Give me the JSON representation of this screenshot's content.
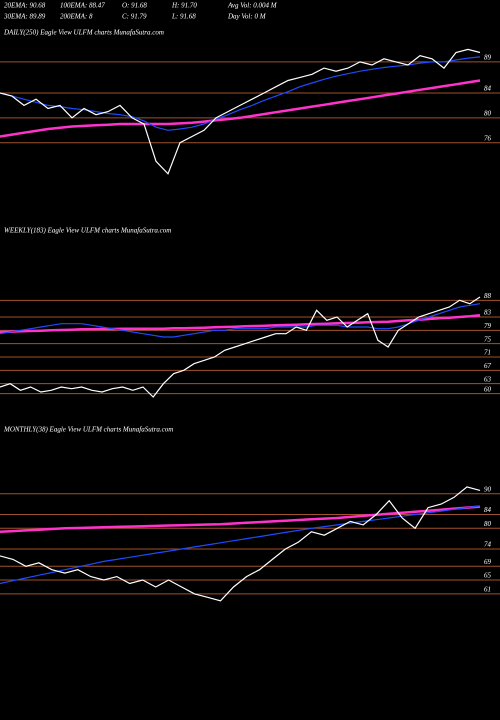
{
  "header": {
    "stats": [
      [
        "20EMA: 90.68",
        "100EMA: 88.47",
        "O: 91.68",
        "H: 91.70",
        "Avg Vol: 0.004  M"
      ],
      [
        "30EMA: 89.89",
        "200EMA: 8",
        "C: 91.79",
        "L: 91.68",
        "Day Vol: 0  M"
      ]
    ]
  },
  "chart_data": [
    {
      "type": "line",
      "title": "DAILY(250) Eagle  View  ULFM charts MunafaSutra.com",
      "ylim": [
        70,
        93
      ],
      "yticks": [
        89,
        84,
        80,
        76
      ],
      "series": [
        {
          "color": "#ff33cc",
          "values": [
            77,
            77.3,
            77.6,
            77.9,
            78.2,
            78.4,
            78.6,
            78.7,
            78.8,
            78.9,
            79,
            79,
            79,
            79,
            79,
            79.1,
            79.2,
            79.4,
            79.6,
            79.8,
            80,
            80.3,
            80.6,
            80.9,
            81.2,
            81.5,
            81.8,
            82.1,
            82.4,
            82.7,
            83,
            83.3,
            83.6,
            83.9,
            84.2,
            84.5,
            84.8,
            85.1,
            85.4,
            85.7,
            86
          ]
        },
        {
          "color": "#1e4bff",
          "values": [
            84,
            83.5,
            83,
            82.5,
            82,
            81.8,
            81.5,
            81.3,
            81,
            80.7,
            80.5,
            80.2,
            79.5,
            78.5,
            78,
            78.2,
            78.5,
            79,
            79.8,
            80.5,
            81.3,
            82,
            82.8,
            83.5,
            84.2,
            85,
            85.6,
            86.2,
            86.7,
            87.1,
            87.5,
            87.8,
            88.1,
            88.3,
            88.5,
            88.8,
            89,
            89,
            89.3,
            89.6,
            89.8
          ]
        },
        {
          "color": "#ffffff",
          "values": [
            84,
            83.5,
            82,
            83,
            81.5,
            82,
            80,
            81.5,
            80.5,
            81,
            82,
            80,
            79,
            73,
            71,
            76,
            77,
            78,
            80,
            81,
            82,
            83,
            84,
            85,
            86,
            86.5,
            87,
            88,
            87.5,
            88,
            89,
            88.5,
            89.5,
            89,
            88.5,
            90,
            89.5,
            88,
            90.5,
            91,
            90.5
          ]
        }
      ]
    },
    {
      "type": "line",
      "title": "WEEKLY(183) Eagle  View  ULFM charts MunafaSutra.com",
      "ylim": [
        56,
        92
      ],
      "yticks": [
        88,
        83,
        79,
        75,
        71,
        67,
        63,
        60
      ],
      "series": [
        {
          "color": "#ff33cc",
          "values": [
            78.5,
            78.6,
            78.7,
            78.8,
            78.9,
            79,
            79.1,
            79.2,
            79.3,
            79.3,
            79.4,
            79.4,
            79.5,
            79.5,
            79.5,
            79.5,
            79.5,
            79.6,
            79.6,
            79.7,
            79.8,
            79.9,
            80,
            80.1,
            80.2,
            80.3,
            80.4,
            80.5,
            80.6,
            80.7,
            80.8,
            80.9,
            81,
            81.1,
            81.2,
            81.3,
            81.4,
            81.5,
            81.6,
            81.8,
            82,
            82.2,
            82.4,
            82.6,
            82.8,
            83,
            83.2,
            83.5
          ]
        },
        {
          "color": "#1e4bff",
          "values": [
            78,
            78.5,
            79,
            79.5,
            80,
            80.5,
            81,
            81,
            81,
            80.5,
            80,
            79.5,
            79,
            78.5,
            78,
            77.5,
            77,
            77,
            77.5,
            78,
            78.5,
            79,
            79,
            79.5,
            79.5,
            79.5,
            79.5,
            80,
            80,
            80,
            80,
            80.5,
            80.5,
            80.5,
            80,
            80,
            80,
            79.5,
            79.5,
            80,
            81,
            82,
            83,
            84,
            85,
            86,
            86.5,
            87
          ]
        },
        {
          "color": "#ffffff",
          "values": [
            62,
            63,
            61,
            62,
            60.5,
            61,
            62,
            61.5,
            62,
            61,
            60.5,
            61.5,
            62,
            61,
            62,
            59,
            63,
            66,
            67,
            69,
            70,
            71,
            73,
            74,
            75,
            76,
            77,
            78,
            78,
            80,
            79,
            85,
            82,
            83,
            80,
            82,
            84,
            76,
            74,
            79,
            81,
            83,
            84,
            85,
            86,
            88,
            87,
            89
          ]
        }
      ]
    },
    {
      "type": "line",
      "title": "MONTHLY(38) Eagle  View  ULFM charts MunafaSutra.com",
      "ylim": [
        54,
        94
      ],
      "yticks": [
        90,
        84,
        80,
        74,
        69,
        65,
        61
      ],
      "series": [
        {
          "color": "#ff33cc",
          "values": [
            79,
            79.2,
            79.4,
            79.6,
            79.8,
            80,
            80.1,
            80.2,
            80.3,
            80.4,
            80.5,
            80.6,
            80.7,
            80.8,
            80.9,
            81,
            81.1,
            81.2,
            81.4,
            81.6,
            81.8,
            82,
            82.2,
            82.4,
            82.6,
            82.8,
            83,
            83.3,
            83.6,
            83.9,
            84.2,
            84.5,
            84.8,
            85.1,
            85.4,
            85.7,
            86,
            86.3
          ]
        },
        {
          "color": "#1e4bff",
          "values": [
            64,
            64.8,
            65.6,
            66.4,
            67.2,
            68,
            68.8,
            69.6,
            70.4,
            71,
            71.6,
            72.2,
            72.8,
            73.4,
            74,
            74.6,
            75.2,
            75.8,
            76.4,
            77,
            77.6,
            78.2,
            78.8,
            79.4,
            80,
            80.5,
            81,
            81.5,
            82,
            82.5,
            83,
            83.5,
            84,
            84.5,
            85,
            85.5,
            86,
            86.5
          ]
        },
        {
          "color": "#ffffff",
          "values": [
            72,
            71,
            69,
            70,
            68,
            67,
            68,
            66,
            65,
            66,
            64,
            65,
            63,
            65,
            63,
            61,
            60,
            59,
            63,
            66,
            68,
            71,
            74,
            76,
            79,
            78,
            80,
            82,
            81,
            84,
            88,
            83,
            80,
            86,
            87,
            89,
            92,
            91
          ]
        }
      ]
    }
  ]
}
